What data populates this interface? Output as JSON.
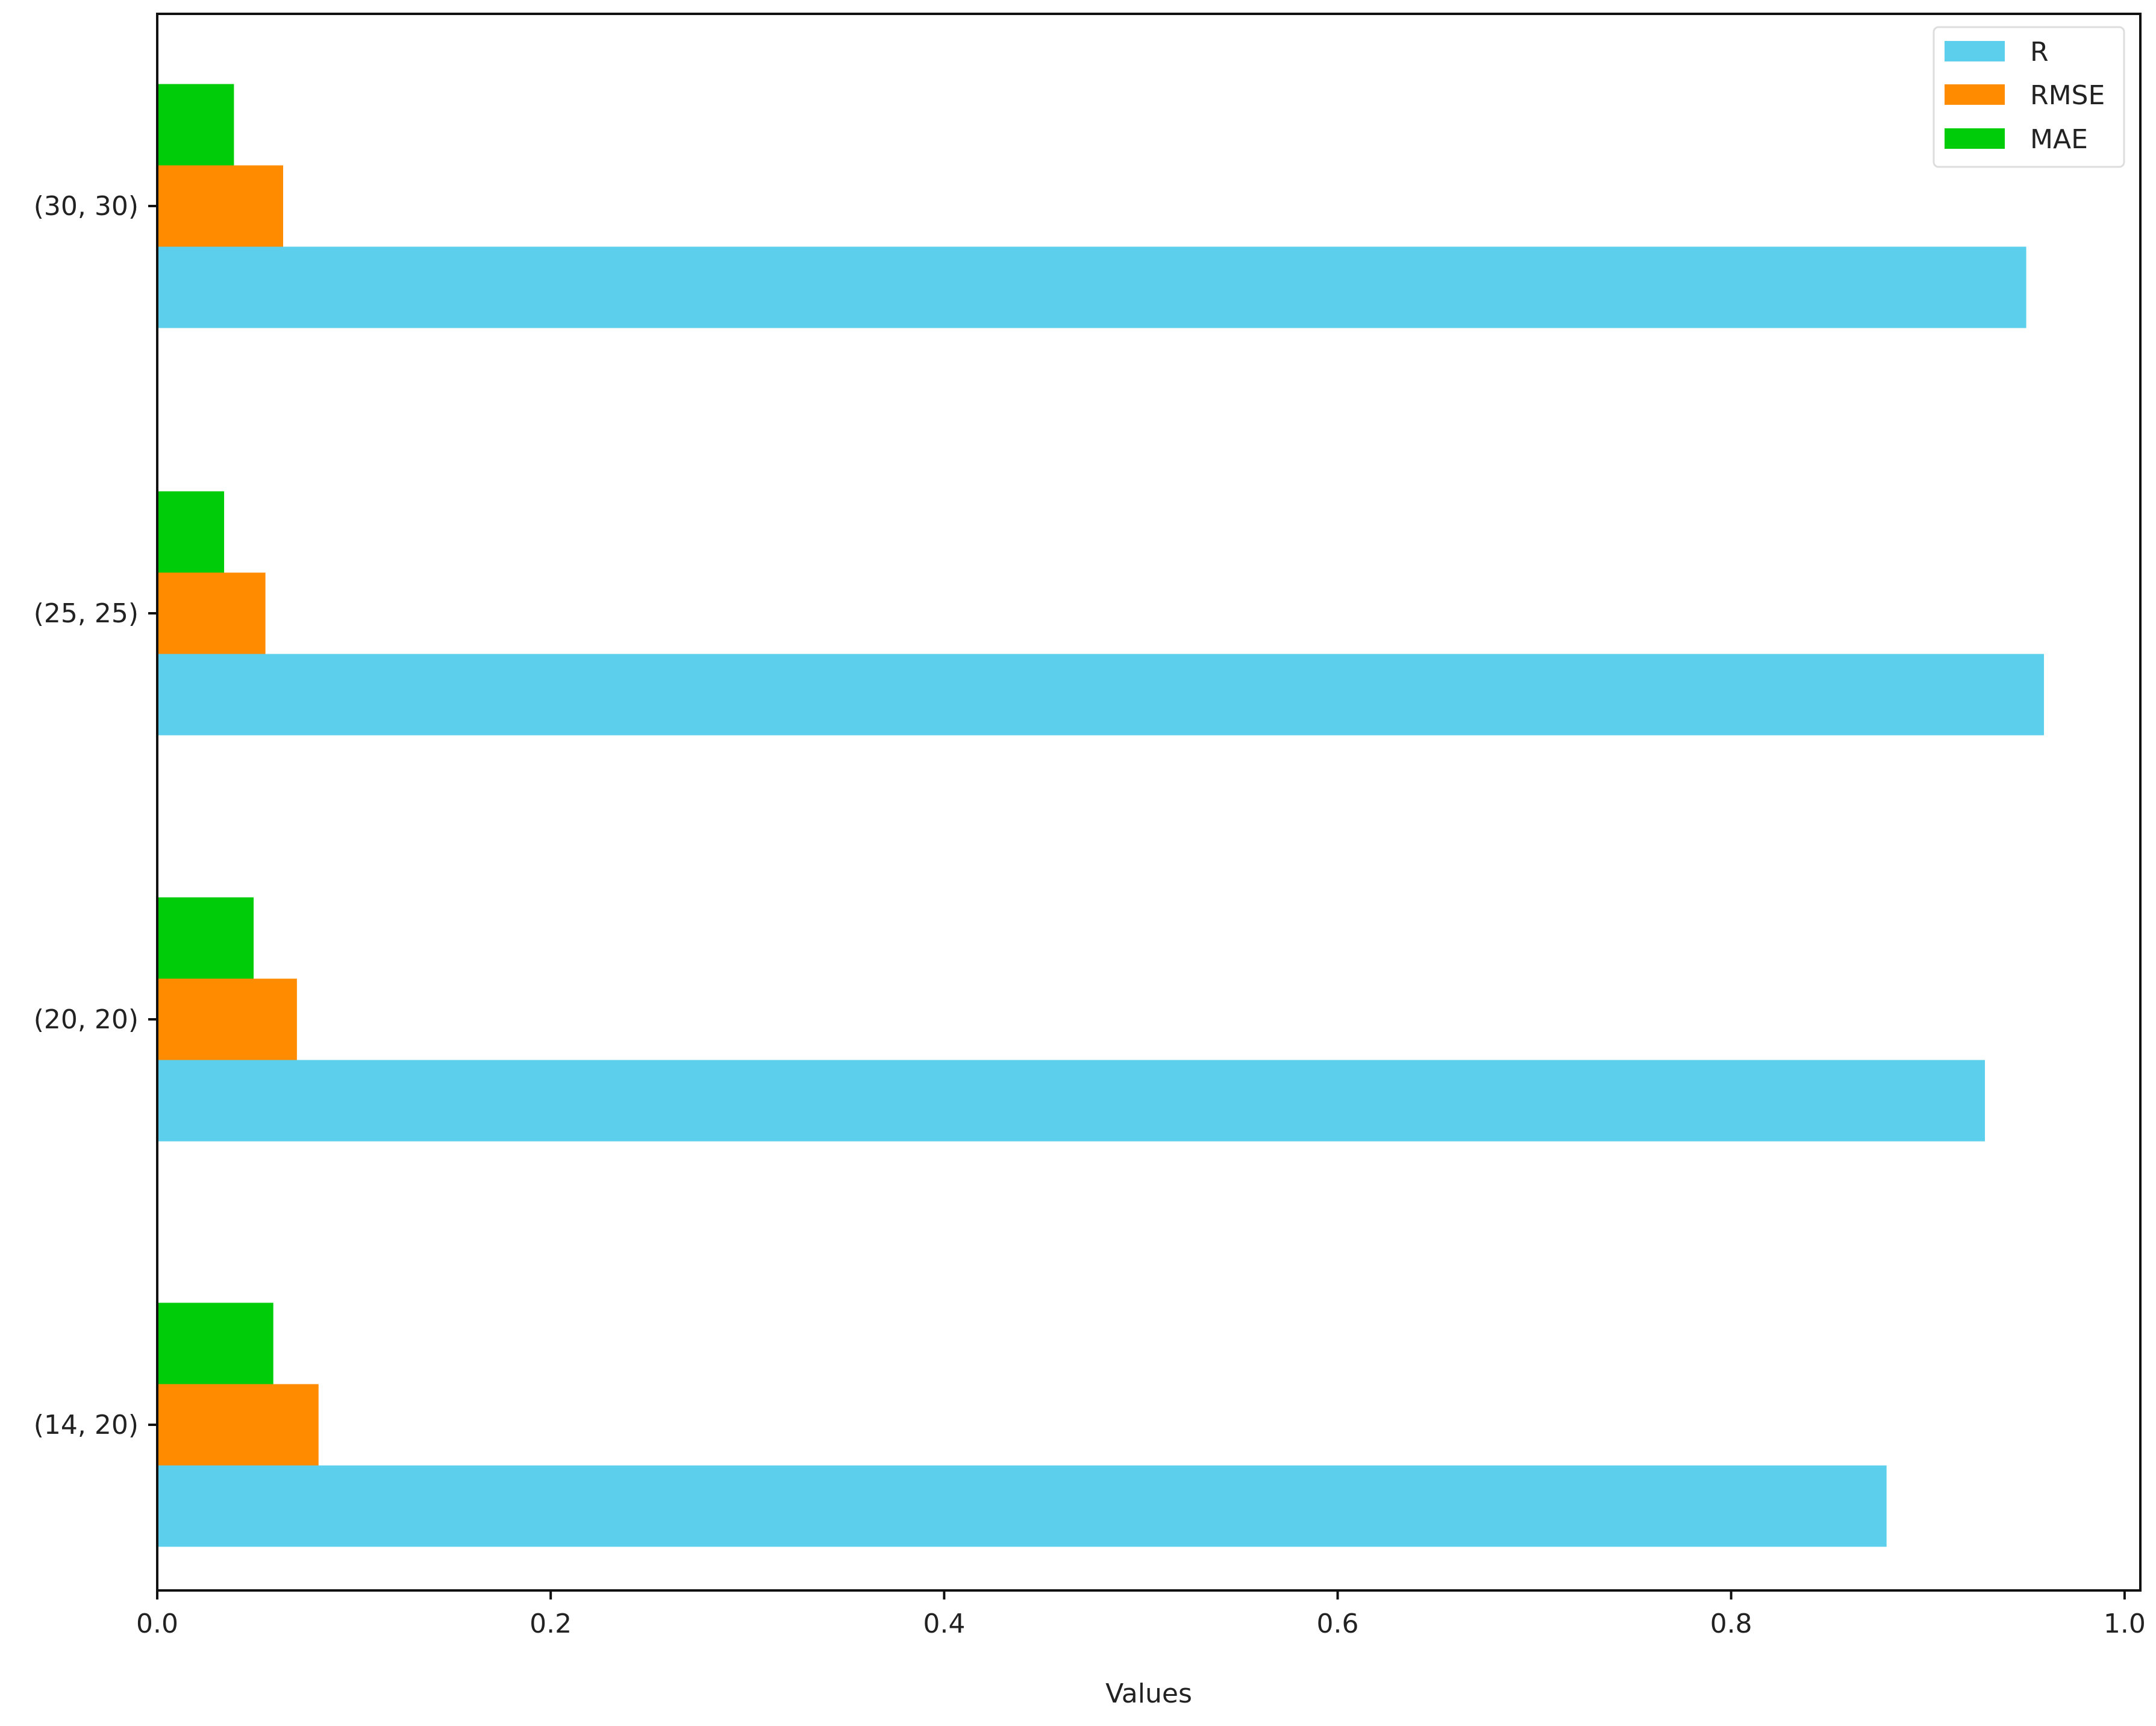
{
  "chart_data": {
    "type": "bar",
    "orientation": "horizontal",
    "categories": [
      "(14, 20)",
      "(20, 20)",
      "(25, 25)",
      "(30, 30)"
    ],
    "series": [
      {
        "name": "R",
        "color": "#5bcfec",
        "values": [
          0.879,
          0.929,
          0.959,
          0.95
        ]
      },
      {
        "name": "RMSE",
        "color": "#ff8c00",
        "values": [
          0.082,
          0.071,
          0.055,
          0.064
        ]
      },
      {
        "name": "MAE",
        "color": "#00cc0a",
        "values": [
          0.059,
          0.049,
          0.034,
          0.039
        ]
      }
    ],
    "xlabel": "Values",
    "ylabel": "",
    "title": "",
    "xlim": [
      0,
      1.008
    ],
    "xticks": [
      "0.0",
      "0.2",
      "0.4",
      "0.6",
      "0.8",
      "1.0"
    ],
    "grid": false,
    "legend": "top-right"
  }
}
